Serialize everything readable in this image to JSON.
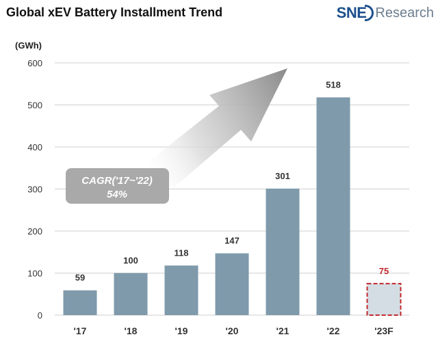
{
  "title": "Global xEV Battery Installment Trend",
  "logo": {
    "brand": "SNE",
    "suffix": "Research"
  },
  "unit_label": "(GWh)",
  "annotation": {
    "line1": "CAGR('17~'22)",
    "line2": "54%"
  },
  "colors": {
    "bar": "#7f9aab",
    "forecast_fill": "#d3dde3",
    "forecast_border": "#c0282d",
    "forecast_label": "#c0282d",
    "grid": "#cfcfcf",
    "annotation_box": "#a9a9a9",
    "arrow": "#8c8c8c"
  },
  "chart_data": {
    "type": "bar",
    "categories": [
      "'17",
      "'18",
      "'19",
      "'20",
      "'21",
      "'22",
      "'23F"
    ],
    "values": [
      59,
      100,
      118,
      147,
      301,
      518,
      75
    ],
    "value_labels": [
      "59",
      "100",
      "118",
      "147",
      "301",
      "518",
      "75"
    ],
    "forecast_index": 6,
    "title": "Global xEV Battery Installment Trend",
    "xlabel": "",
    "ylabel": "(GWh)",
    "ylim": [
      0,
      600
    ],
    "yticks": [
      0,
      100,
      200,
      300,
      400,
      500,
      600
    ],
    "grid": true,
    "legend": "none"
  }
}
